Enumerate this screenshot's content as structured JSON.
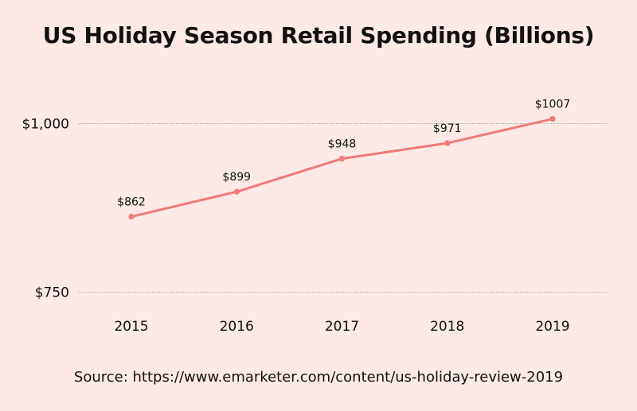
{
  "colors": {
    "background": "#fde9e5",
    "line": "#f07a78",
    "gridline": "#aaaaaa",
    "text": "#111111"
  },
  "chart_data": {
    "type": "line",
    "title": "US Holiday Season Retail Spending (Billions)",
    "xlabel": "",
    "ylabel": "",
    "categories": [
      "2015",
      "2016",
      "2017",
      "2018",
      "2019"
    ],
    "series": [
      {
        "values": [
          862,
          899,
          948,
          971,
          1007
        ],
        "data_labels": [
          "$862",
          "$899",
          "$948",
          "$971",
          "$1007"
        ]
      }
    ],
    "ylim": [
      750,
      1000
    ],
    "yticks": [
      {
        "value": 1000,
        "label": "$1,000"
      },
      {
        "value": 750,
        "label": "$750"
      }
    ],
    "grid": true,
    "legend": "none",
    "source": "Source: https://www.emarketer.com/content/us-holiday-review-2019"
  }
}
